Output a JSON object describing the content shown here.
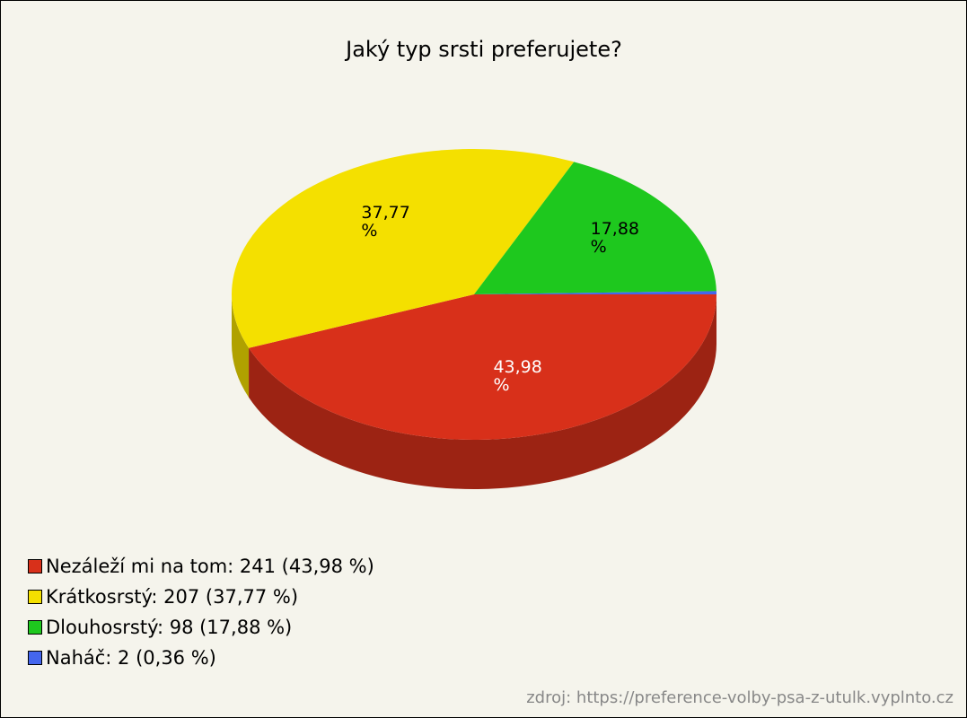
{
  "chart_data": {
    "type": "pie",
    "title": "Jaký typ srsti preferujete?",
    "categories": [
      "Nezáleží mi na tom",
      "Krátkosrstý",
      "Dlouhosrstý",
      "Naháč"
    ],
    "values": [
      43.98,
      37.77,
      17.88,
      0.36
    ],
    "value_labels": [
      "43,98 %",
      "37,77 %",
      "17,88 %",
      null
    ],
    "colors": [
      "#d8301a",
      "#f4e000",
      "#1ec81e",
      "#4466ee"
    ],
    "legend_labels": [
      "Nezáleží mi na tom: 241 (43,98 %)",
      "Krátkosrstý: 207 (37,77 %)",
      "Dlouhosrstý: 98 (17,88 %)",
      "Naháč: 2 (0,36 %)"
    ],
    "source": "zdroj: https://preference-volby-psa-z-utulk.vyplnto.cz"
  }
}
